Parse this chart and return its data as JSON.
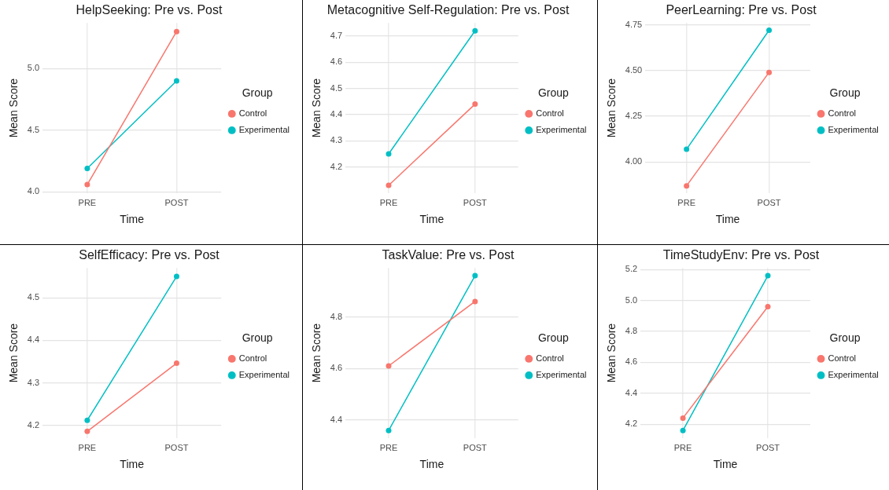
{
  "chart_data": [
    {
      "type": "line",
      "title": "HelpSeeking: Pre vs. Post",
      "xlabel": "Time",
      "ylabel": "Mean Score",
      "legend_title": "Group",
      "categories": [
        "PRE",
        "POST"
      ],
      "series": [
        {
          "name": "Control",
          "color": "#f8766d",
          "values": [
            4.06,
            5.3
          ]
        },
        {
          "name": "Experimental",
          "color": "#00bfc4",
          "values": [
            4.19,
            4.9
          ]
        }
      ],
      "ylim": [
        3.99,
        5.37
      ],
      "yticks": [
        {
          "value": 4,
          "label": "4.0"
        },
        4.5,
        {
          "value": 5,
          "label": "5.0"
        }
      ],
      "grid": true,
      "legend": "right",
      "marker": "circle"
    },
    {
      "type": "line",
      "title": "Metacognitive Self-Regulation: Pre vs. Post",
      "xlabel": "Time",
      "ylabel": "Mean Score",
      "legend_title": "Group",
      "categories": [
        "PRE",
        "POST"
      ],
      "series": [
        {
          "name": "Control",
          "color": "#f8766d",
          "values": [
            4.13,
            4.44
          ]
        },
        {
          "name": "Experimental",
          "color": "#00bfc4",
          "values": [
            4.25,
            4.72
          ]
        }
      ],
      "ylim": [
        4.1,
        4.75
      ],
      "yticks": [
        4.2,
        4.3,
        4.4,
        4.5,
        4.6,
        4.7
      ],
      "grid": true,
      "legend": "right",
      "marker": "circle"
    },
    {
      "type": "line",
      "title": "PeerLearning: Pre vs. Post",
      "xlabel": "Time",
      "ylabel": "Mean Score",
      "legend_title": "Group",
      "categories": [
        "PRE",
        "POST"
      ],
      "series": [
        {
          "name": "Control",
          "color": "#f8766d",
          "values": [
            3.87,
            4.49
          ]
        },
        {
          "name": "Experimental",
          "color": "#00bfc4",
          "values": [
            4.07,
            4.72
          ]
        }
      ],
      "ylim": [
        3.83,
        4.76
      ],
      "yticks": [
        {
          "value": 4,
          "label": "4.00"
        },
        {
          "value": 4.25,
          "label": "4.25"
        },
        {
          "value": 4.5,
          "label": "4.50"
        },
        {
          "value": 4.75,
          "label": "4.75"
        }
      ],
      "grid": true,
      "legend": "right",
      "marker": "circle"
    },
    {
      "type": "line",
      "title": "SelfEfficacy: Pre vs. Post",
      "xlabel": "Time",
      "ylabel": "Mean Score",
      "legend_title": "Group",
      "categories": [
        "PRE",
        "POST"
      ],
      "series": [
        {
          "name": "Control",
          "color": "#f8766d",
          "values": [
            4.186,
            4.346
          ]
        },
        {
          "name": "Experimental",
          "color": "#00bfc4",
          "values": [
            4.212,
            4.55
          ]
        }
      ],
      "ylim": [
        4.17,
        4.57
      ],
      "yticks": [
        4.2,
        4.3,
        4.4,
        4.5
      ],
      "grid": true,
      "legend": "right",
      "marker": "circle"
    },
    {
      "type": "line",
      "title": "TaskValue: Pre vs. Post",
      "xlabel": "Time",
      "ylabel": "Mean Score",
      "legend_title": "Group",
      "categories": [
        "PRE",
        "POST"
      ],
      "series": [
        {
          "name": "Control",
          "color": "#f8766d",
          "values": [
            4.61,
            4.86
          ]
        },
        {
          "name": "Experimental",
          "color": "#00bfc4",
          "values": [
            4.36,
            4.96
          ]
        }
      ],
      "ylim": [
        4.33,
        4.99
      ],
      "yticks": [
        4.4,
        4.6,
        4.8
      ],
      "grid": true,
      "legend": "right",
      "marker": "circle"
    },
    {
      "type": "line",
      "title": "TimeStudyEnv: Pre vs. Post",
      "xlabel": "Time",
      "ylabel": "Mean Score",
      "legend_title": "Group",
      "categories": [
        "PRE",
        "POST"
      ],
      "series": [
        {
          "name": "Control",
          "color": "#f8766d",
          "values": [
            4.24,
            4.96
          ]
        },
        {
          "name": "Experimental",
          "color": "#00bfc4",
          "values": [
            4.16,
            5.16
          ]
        }
      ],
      "ylim": [
        4.11,
        5.21
      ],
      "yticks": [
        4.2,
        4.4,
        4.6,
        4.8,
        {
          "value": 5,
          "label": "5.0"
        },
        5.2
      ],
      "grid": true,
      "legend": "right",
      "marker": "circle"
    }
  ]
}
